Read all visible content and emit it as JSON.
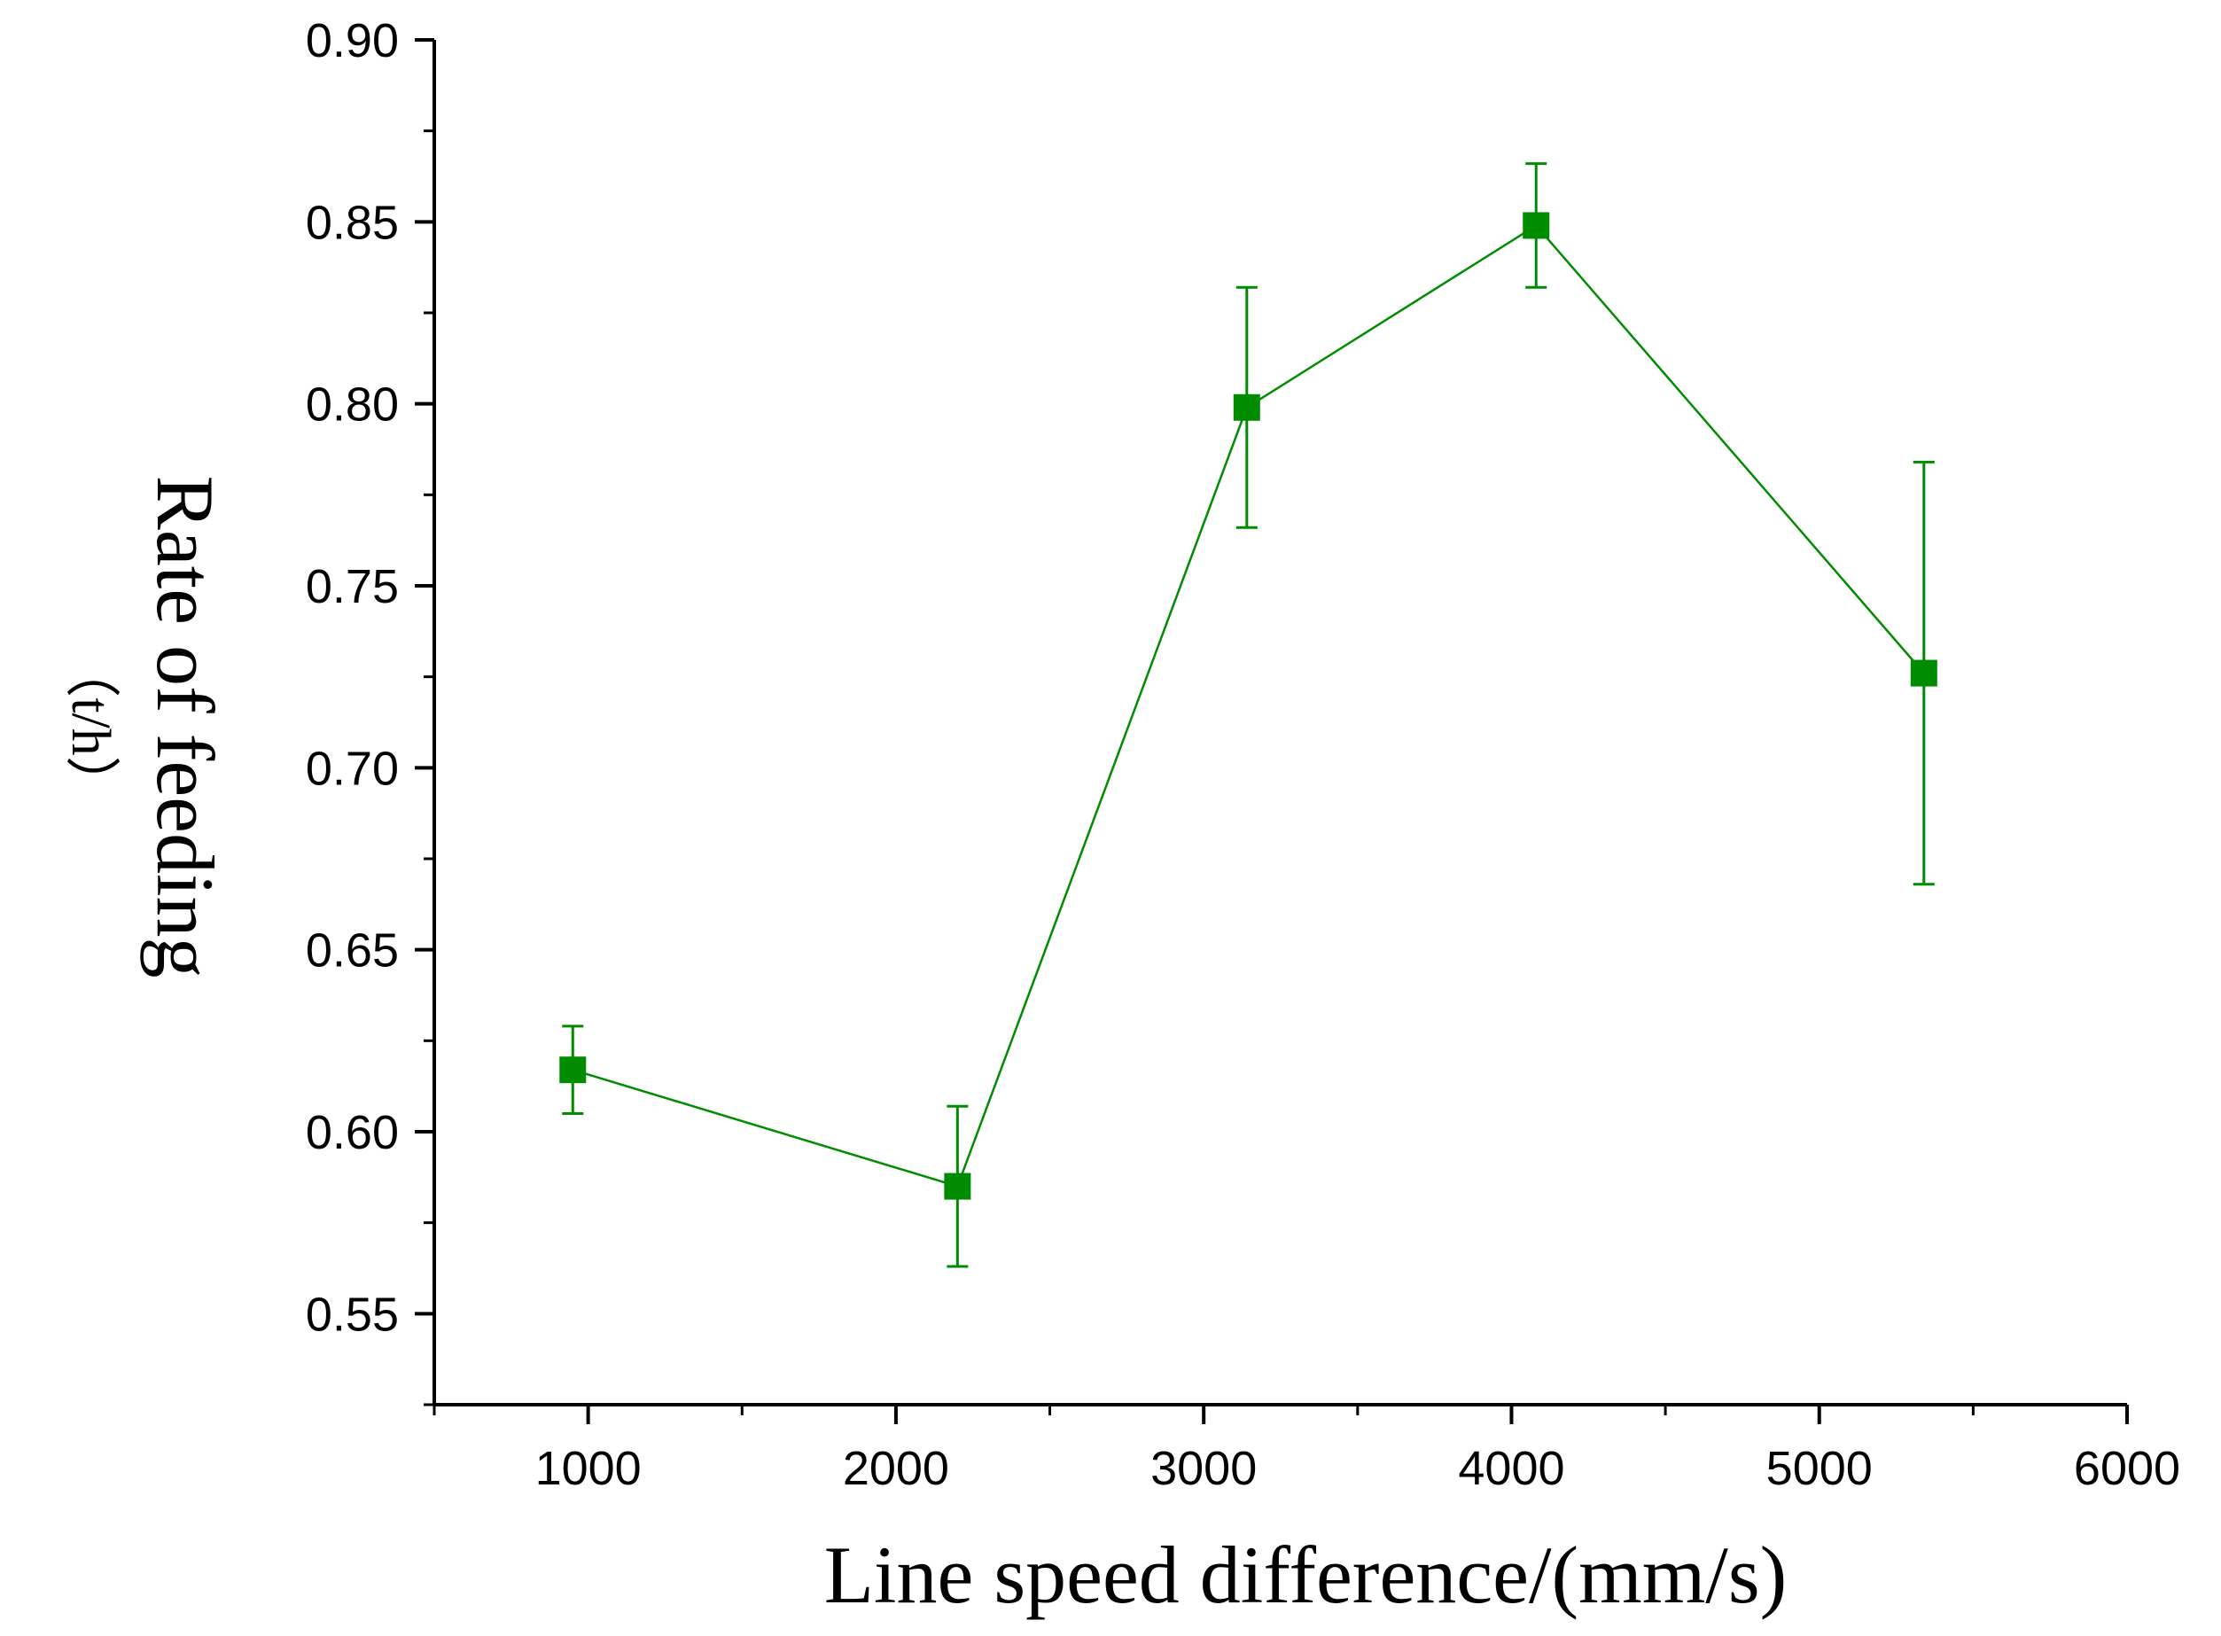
{
  "chart_data": {
    "type": "line",
    "title": "",
    "xlabel": "Line speed difference/(mm/s)",
    "ylabel": "Rate of feeding",
    "ylabel_unit": "（t/h）",
    "xlim": [
      500,
      6000
    ],
    "ylim": [
      0.525,
      0.9
    ],
    "x_ticks": [
      1000,
      2000,
      3000,
      4000,
      5000,
      6000
    ],
    "x_tick_labels": [
      "1000",
      "2000",
      "3000",
      "4000",
      "5000",
      "6000"
    ],
    "y_ticks": [
      0.55,
      0.6,
      0.65,
      0.7,
      0.75,
      0.8,
      0.85,
      0.9
    ],
    "y_tick_labels": [
      "0.55",
      "0.60",
      "0.65",
      "0.70",
      "0.75",
      "0.80",
      "0.85",
      "0.90"
    ],
    "series": [
      {
        "name": "Rate of feeding",
        "color": "#008c00",
        "marker": "square",
        "x": [
          950,
          2200,
          3140,
          4080,
          5340
        ],
        "y": [
          0.617,
          0.585,
          0.799,
          0.849,
          0.726
        ],
        "err_low": [
          0.605,
          0.563,
          0.766,
          0.832,
          0.668
        ],
        "err_high": [
          0.629,
          0.607,
          0.832,
          0.866,
          0.784
        ]
      }
    ]
  }
}
